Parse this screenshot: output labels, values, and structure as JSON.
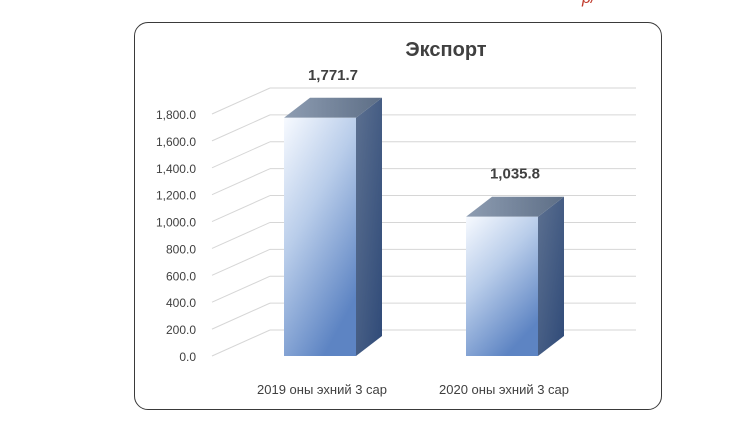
{
  "page_fragment": "р/",
  "chart_data": {
    "type": "bar",
    "title": "Экспорт",
    "categories": [
      "2019 оны эхний 3 сар",
      "2020 оны эхний 3 сар"
    ],
    "values": [
      1771.7,
      1035.8
    ],
    "value_labels": [
      "1,771.7",
      "1,035.8"
    ],
    "xlabel": "",
    "ylabel": "",
    "ylim": [
      0,
      1800
    ],
    "yticks": [
      "0.0",
      "200.0",
      "400.0",
      "600.0",
      "800.0",
      "1,000.0",
      "1,200.0",
      "1,400.0",
      "1,600.0",
      "1,800.0"
    ],
    "grid": true,
    "legend": "none",
    "style": "3d-column",
    "colors": {
      "bar_light": "#f4f8fd",
      "bar_dark": "#5f86c4",
      "bar_side": "#3b5a8a",
      "bar_top": "#6d7f96",
      "grid": "#d6d6d6",
      "text": "#404040"
    }
  }
}
